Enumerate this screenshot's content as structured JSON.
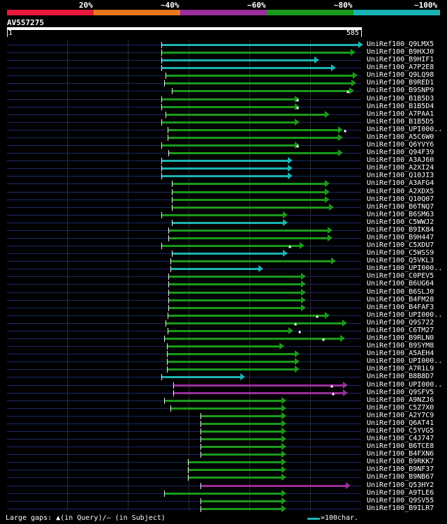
{
  "header": {
    "scale_colors": [
      "#e8193c",
      "#e8771e",
      "#9a2e9a",
      "#1a9a1a",
      "#1ab3b3"
    ],
    "scale_labels": [
      "20%",
      "~40%",
      "~60%",
      "~80%",
      "~100%"
    ],
    "query_name": "AV557275",
    "query_start": "1",
    "query_end": "585"
  },
  "query_length": 585,
  "hits": [
    {
      "name": "UniRef100_Q9LMX5",
      "start": 255,
      "end": 585,
      "color": "#1ab3b3"
    },
    {
      "name": "UniRef100_B9HXJ0",
      "start": 255,
      "end": 572,
      "color": "#1a9a1a"
    },
    {
      "name": "UniRef100_B9HIF1",
      "start": 255,
      "end": 512,
      "color": "#1ab3b3"
    },
    {
      "name": "UniRef100_A7P2E8",
      "start": 255,
      "end": 540,
      "color": "#1ab3b3"
    },
    {
      "name": "UniRef100_Q9LQ98",
      "start": 262,
      "end": 576,
      "color": "#1a9a1a"
    },
    {
      "name": "UniRef100_B9RED1",
      "start": 260,
      "end": 574,
      "color": "#1a9a1a"
    },
    {
      "name": "UniRef100_B9SNP9",
      "start": 272,
      "end": 570,
      "color": "#1a9a1a",
      "gq": [
        564
      ]
    },
    {
      "name": "UniRef100_B1B5D3",
      "start": 255,
      "end": 480,
      "color": "#1a9a1a",
      "gq": [
        481
      ]
    },
    {
      "name": "UniRef100_B1B5D4",
      "start": 255,
      "end": 480,
      "color": "#1a9a1a",
      "gq": [
        481
      ]
    },
    {
      "name": "UniRef100_A7PAA1",
      "start": 262,
      "end": 530,
      "color": "#1a9a1a"
    },
    {
      "name": "UniRef100_B1B5D5",
      "start": 255,
      "end": 480,
      "color": "#1a9a1a"
    },
    {
      "name": "UniRef100_UPI000..",
      "start": 265,
      "end": 552,
      "color": "#1a9a1a",
      "gq": [
        560
      ]
    },
    {
      "name": "UniRef100_A5C6W0",
      "start": 265,
      "end": 552,
      "color": "#1a9a1a"
    },
    {
      "name": "UniRef100_Q6YVY6",
      "start": 255,
      "end": 480,
      "color": "#1a9a1a",
      "gq": [
        481
      ]
    },
    {
      "name": "UniRef100_Q94F39",
      "start": 267,
      "end": 552,
      "color": "#1a9a1a"
    },
    {
      "name": "UniRef100_A3AJ60",
      "start": 255,
      "end": 468,
      "color": "#1ab3b3"
    },
    {
      "name": "UniRef100_A2XI24",
      "start": 255,
      "end": 468,
      "color": "#1ab3b3"
    },
    {
      "name": "UniRef100_Q10JI3",
      "start": 255,
      "end": 468,
      "color": "#1ab3b3"
    },
    {
      "name": "UniRef100_A3AFG4",
      "start": 272,
      "end": 530,
      "color": "#1a9a1a"
    },
    {
      "name": "UniRef100_A2XDX5",
      "start": 272,
      "end": 530,
      "color": "#1a9a1a"
    },
    {
      "name": "UniRef100_Q10Q07",
      "start": 272,
      "end": 530,
      "color": "#1a9a1a"
    },
    {
      "name": "UniRef100_B6TNQ7",
      "start": 272,
      "end": 537,
      "color": "#1a9a1a"
    },
    {
      "name": "UniRef100_B6SM63",
      "start": 255,
      "end": 460,
      "color": "#1a9a1a"
    },
    {
      "name": "UniRef100_C5WWJ2",
      "start": 272,
      "end": 460,
      "color": "#1ab3b3"
    },
    {
      "name": "UniRef100_B9IK84",
      "start": 267,
      "end": 534,
      "color": "#1a9a1a"
    },
    {
      "name": "UniRef100_B9H447",
      "start": 267,
      "end": 534,
      "color": "#1a9a1a"
    },
    {
      "name": "UniRef100_C5XDU7",
      "start": 255,
      "end": 488,
      "color": "#1a9a1a",
      "gq": [
        468
      ]
    },
    {
      "name": "UniRef100_C5WSS9",
      "start": 272,
      "end": 460,
      "color": "#1ab3b3"
    },
    {
      "name": "UniRef100_Q5VKL3",
      "start": 270,
      "end": 540,
      "color": "#1a9a1a"
    },
    {
      "name": "UniRef100_UPI000..",
      "start": 270,
      "end": 420,
      "color": "#1ab3b3"
    },
    {
      "name": "UniRef100_C0PEV5",
      "start": 267,
      "end": 490,
      "color": "#1a9a1a"
    },
    {
      "name": "UniRef100_B6UG64",
      "start": 267,
      "end": 490,
      "color": "#1a9a1a"
    },
    {
      "name": "UniRef100_B6SLJ0",
      "start": 267,
      "end": 490,
      "color": "#1a9a1a"
    },
    {
      "name": "UniRef100_B4FM28",
      "start": 267,
      "end": 490,
      "color": "#1a9a1a"
    },
    {
      "name": "UniRef100_B4FAF3",
      "start": 267,
      "end": 490,
      "color": "#1a9a1a"
    },
    {
      "name": "UniRef100_UPI000..",
      "start": 265,
      "end": 530,
      "color": "#1a9a1a",
      "gq": [
        514
      ]
    },
    {
      "name": "UniRef100_Q9S722",
      "start": 262,
      "end": 558,
      "color": "#1a9a1a",
      "gq": [
        478
      ]
    },
    {
      "name": "UniRef100_C6TM27",
      "start": 265,
      "end": 470,
      "color": "#1a9a1a",
      "gq": [
        485
      ]
    },
    {
      "name": "UniRef100_B9RLN0",
      "start": 260,
      "end": 555,
      "color": "#1a9a1a",
      "gq": [
        524
      ]
    },
    {
      "name": "UniRef100_B9SYM8",
      "start": 264,
      "end": 455,
      "color": "#1a9a1a"
    },
    {
      "name": "UniRef100_A5AEH4",
      "start": 264,
      "end": 480,
      "color": "#1a9a1a"
    },
    {
      "name": "UniRef100_UPI000..",
      "start": 264,
      "end": 480,
      "color": "#1a9a1a"
    },
    {
      "name": "UniRef100_A7R1L9",
      "start": 264,
      "end": 480,
      "color": "#1a9a1a"
    },
    {
      "name": "UniRef100_B8B8D7",
      "start": 255,
      "end": 390,
      "color": "#1ab3b3"
    },
    {
      "name": "UniRef100_UPI000..",
      "start": 275,
      "end": 560,
      "color": "#9a2e9a",
      "gq": [
        538
      ]
    },
    {
      "name": "UniRef100_Q9SFV5",
      "start": 275,
      "end": 560,
      "color": "#9a2e9a",
      "gq": [
        540
      ]
    },
    {
      "name": "UniRef100_A9NZJ6",
      "start": 260,
      "end": 458,
      "color": "#1a9a1a"
    },
    {
      "name": "UniRef100_C5Z7X0",
      "start": 270,
      "end": 458,
      "color": "#1a9a1a"
    },
    {
      "name": "UniRef100_A2Y7C9",
      "start": 320,
      "end": 458,
      "color": "#1a9a1a"
    },
    {
      "name": "UniRef100_Q6AT41",
      "start": 320,
      "end": 458,
      "color": "#1a9a1a"
    },
    {
      "name": "UniRef100_C5YVG5",
      "start": 320,
      "end": 458,
      "color": "#1a9a1a"
    },
    {
      "name": "UniRef100_C4J747",
      "start": 320,
      "end": 458,
      "color": "#1a9a1a"
    },
    {
      "name": "UniRef100_B6TCE8",
      "start": 320,
      "end": 458,
      "color": "#1a9a1a"
    },
    {
      "name": "UniRef100_B4FXN6",
      "start": 320,
      "end": 458,
      "color": "#1a9a1a"
    },
    {
      "name": "UniRef100_B9RKK7",
      "start": 299,
      "end": 458,
      "color": "#1a9a1a"
    },
    {
      "name": "UniRef100_B9NF37",
      "start": 299,
      "end": 458,
      "color": "#1a9a1a"
    },
    {
      "name": "UniRef100_B9NB67",
      "start": 299,
      "end": 458,
      "color": "#1a9a1a"
    },
    {
      "name": "UniRef100_Q53HY2",
      "start": 320,
      "end": 564,
      "color": "#9a2e9a"
    },
    {
      "name": "UniRef100_A9TLE6",
      "start": 260,
      "end": 458,
      "color": "#1a9a1a"
    },
    {
      "name": "UniRef100_Q9SV55",
      "start": 320,
      "end": 458,
      "color": "#1a9a1a"
    },
    {
      "name": "UniRef100_B9ILR7",
      "start": 320,
      "end": 458,
      "color": "#1a9a1a"
    }
  ],
  "legend": {
    "gaps_label": "Large gaps: ",
    "gaps_query": "▲(in Query)",
    "gaps_subject": "/– (in Subject)",
    "scale_color": "#1ab3b3",
    "scale_text": "=100char."
  }
}
